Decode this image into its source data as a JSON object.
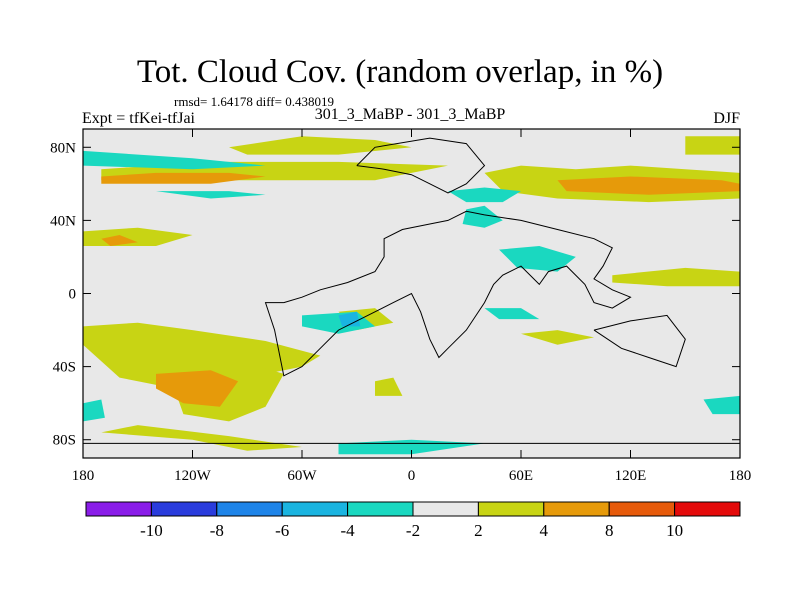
{
  "chart_data": {
    "type": "heatmap",
    "title": "Tot. Cloud Cov. (random overlap, in %)",
    "stats_text": "rmsd= 1.64178 diff= 0.438019",
    "left_label": "Expt = tfKei-tfJai",
    "center_label": "301_3_MaBP - 301_3_MaBP",
    "right_label": "DJF",
    "x_ticks": [
      "180",
      "120W",
      "60W",
      "0",
      "60E",
      "120E",
      "180"
    ],
    "x_tick_values": [
      -180,
      -120,
      -60,
      0,
      60,
      120,
      180
    ],
    "y_ticks": [
      "80N",
      "40N",
      "0",
      "40S",
      "80S"
    ],
    "y_tick_values": [
      80,
      40,
      0,
      -40,
      -80
    ],
    "xlim": [
      -180,
      180
    ],
    "ylim": [
      -90,
      90
    ],
    "colorbar": {
      "labels": [
        "-10",
        "-8",
        "-6",
        "-4",
        "-2",
        "2",
        "4",
        "8",
        "10"
      ],
      "colors": [
        "#8a1de8",
        "#2a3cdc",
        "#1e84e8",
        "#1ab4e0",
        "#1ad8c0",
        "#e8e8e8",
        "#c8d414",
        "#e69a0a",
        "#e65a0a",
        "#e40a0a"
      ]
    },
    "regions": [
      {
        "level": 2,
        "color": "#c8d414",
        "polygons": [
          [
            [
              -100,
              80
            ],
            [
              -60,
              86
            ],
            [
              -20,
              84
            ],
            [
              0,
              80
            ],
            [
              -40,
              76
            ],
            [
              -90,
              76
            ]
          ],
          [
            [
              -170,
              68
            ],
            [
              -110,
              72
            ],
            [
              -40,
              72
            ],
            [
              20,
              70
            ],
            [
              -20,
              62
            ],
            [
              -120,
              62
            ],
            [
              -170,
              62
            ]
          ],
          [
            [
              40,
              66
            ],
            [
              60,
              70
            ],
            [
              90,
              68
            ],
            [
              120,
              70
            ],
            [
              150,
              68
            ],
            [
              180,
              66
            ],
            [
              180,
              52
            ],
            [
              130,
              50
            ],
            [
              80,
              52
            ],
            [
              50,
              56
            ]
          ],
          [
            [
              150,
              86
            ],
            [
              180,
              86
            ],
            [
              180,
              76
            ],
            [
              150,
              76
            ]
          ],
          [
            [
              -180,
              34
            ],
            [
              -150,
              36
            ],
            [
              -120,
              32
            ],
            [
              -140,
              26
            ],
            [
              -180,
              26
            ]
          ],
          [
            [
              -180,
              -18
            ],
            [
              -150,
              -16
            ],
            [
              -120,
              -20
            ],
            [
              -80,
              -26
            ],
            [
              -50,
              -34
            ],
            [
              -60,
              -40
            ],
            [
              -100,
              -48
            ],
            [
              -130,
              -52
            ],
            [
              -160,
              -46
            ],
            [
              -180,
              -28
            ]
          ],
          [
            [
              -110,
              -40
            ],
            [
              -90,
              -38
            ],
            [
              -70,
              -44
            ],
            [
              -80,
              -62
            ],
            [
              -100,
              -70
            ],
            [
              -125,
              -66
            ],
            [
              -130,
              -52
            ]
          ],
          [
            [
              -170,
              -76
            ],
            [
              -120,
              -80
            ],
            [
              -90,
              -86
            ],
            [
              -60,
              -84
            ],
            [
              -100,
              -78
            ],
            [
              -150,
              -72
            ]
          ],
          [
            [
              -40,
              -10
            ],
            [
              -20,
              -8
            ],
            [
              -10,
              -16
            ],
            [
              -30,
              -20
            ]
          ],
          [
            [
              60,
              -22
            ],
            [
              80,
              -20
            ],
            [
              100,
              -24
            ],
            [
              80,
              -28
            ]
          ],
          [
            [
              110,
              10
            ],
            [
              150,
              14
            ],
            [
              180,
              12
            ],
            [
              180,
              4
            ],
            [
              140,
              4
            ],
            [
              110,
              6
            ]
          ],
          [
            [
              -20,
              -48
            ],
            [
              -10,
              -46
            ],
            [
              -5,
              -56
            ],
            [
              -20,
              -56
            ]
          ]
        ]
      },
      {
        "level": 4,
        "color": "#e69a0a",
        "polygons": [
          [
            [
              -170,
              64
            ],
            [
              -140,
              66
            ],
            [
              -100,
              66
            ],
            [
              -80,
              64
            ],
            [
              -110,
              60
            ],
            [
              -170,
              60
            ]
          ],
          [
            [
              80,
              62
            ],
            [
              120,
              64
            ],
            [
              170,
              62
            ],
            [
              180,
              60
            ],
            [
              180,
              56
            ],
            [
              130,
              54
            ],
            [
              85,
              56
            ]
          ],
          [
            [
              -170,
              30
            ],
            [
              -160,
              32
            ],
            [
              -150,
              28
            ],
            [
              -165,
              26
            ]
          ],
          [
            [
              -140,
              -44
            ],
            [
              -110,
              -42
            ],
            [
              -95,
              -48
            ],
            [
              -105,
              -62
            ],
            [
              -125,
              -60
            ],
            [
              -140,
              -52
            ]
          ]
        ]
      },
      {
        "level": -2,
        "color": "#1ad8c0",
        "polygons": [
          [
            [
              -180,
              78
            ],
            [
              -120,
              74
            ],
            [
              -80,
              70
            ],
            [
              -120,
              68
            ],
            [
              -180,
              70
            ]
          ],
          [
            [
              -140,
              56
            ],
            [
              -100,
              56
            ],
            [
              -80,
              54
            ],
            [
              -110,
              52
            ]
          ],
          [
            [
              20,
              56
            ],
            [
              40,
              58
            ],
            [
              60,
              56
            ],
            [
              50,
              50
            ],
            [
              30,
              50
            ]
          ],
          [
            [
              30,
              46
            ],
            [
              40,
              48
            ],
            [
              50,
              40
            ],
            [
              40,
              36
            ],
            [
              28,
              38
            ]
          ],
          [
            [
              48,
              24
            ],
            [
              70,
              26
            ],
            [
              90,
              20
            ],
            [
              80,
              12
            ],
            [
              58,
              14
            ]
          ],
          [
            [
              -60,
              -12
            ],
            [
              -30,
              -10
            ],
            [
              -20,
              -18
            ],
            [
              -40,
              -22
            ],
            [
              -60,
              -18
            ]
          ],
          [
            [
              40,
              -8
            ],
            [
              60,
              -8
            ],
            [
              70,
              -14
            ],
            [
              48,
              -14
            ]
          ],
          [
            [
              -180,
              -60
            ],
            [
              -170,
              -58
            ],
            [
              -168,
              -68
            ],
            [
              -180,
              -70
            ]
          ],
          [
            [
              -40,
              -82
            ],
            [
              0,
              -80
            ],
            [
              40,
              -82
            ],
            [
              0,
              -88
            ],
            [
              -40,
              -88
            ]
          ],
          [
            [
              160,
              -58
            ],
            [
              180,
              -56
            ],
            [
              180,
              -66
            ],
            [
              165,
              -66
            ]
          ]
        ]
      },
      {
        "level": -4,
        "color": "#1ab4e0",
        "polygons": [
          [
            [
              -40,
              -12
            ],
            [
              -30,
              -10
            ],
            [
              -28,
              -18
            ],
            [
              -38,
              -18
            ]
          ]
        ]
      }
    ],
    "coastline": [
      [
        [
          -70,
          -5
        ],
        [
          -60,
          -2
        ],
        [
          -50,
          2
        ],
        [
          -35,
          6
        ],
        [
          -20,
          12
        ],
        [
          -15,
          20
        ],
        [
          -15,
          30
        ],
        [
          -5,
          35
        ],
        [
          10,
          38
        ],
        [
          20,
          40
        ],
        [
          30,
          45
        ],
        [
          40,
          43
        ],
        [
          60,
          40
        ],
        [
          80,
          35
        ],
        [
          100,
          30
        ],
        [
          110,
          25
        ],
        [
          105,
          15
        ],
        [
          100,
          8
        ],
        [
          110,
          2
        ],
        [
          120,
          -2
        ],
        [
          110,
          -8
        ],
        [
          100,
          -5
        ],
        [
          95,
          5
        ],
        [
          85,
          15
        ],
        [
          75,
          12
        ],
        [
          70,
          5
        ],
        [
          60,
          15
        ],
        [
          50,
          10
        ],
        [
          45,
          5
        ],
        [
          40,
          -5
        ],
        [
          30,
          -20
        ],
        [
          20,
          -30
        ],
        [
          15,
          -35
        ],
        [
          10,
          -25
        ],
        [
          5,
          -10
        ],
        [
          0,
          0
        ],
        [
          -10,
          -5
        ],
        [
          -20,
          -10
        ],
        [
          -30,
          -15
        ],
        [
          -40,
          -20
        ],
        [
          -50,
          -30
        ],
        [
          -60,
          -40
        ],
        [
          -70,
          -45
        ],
        [
          -75,
          -20
        ],
        [
          -80,
          -5
        ],
        [
          -70,
          -5
        ]
      ],
      [
        [
          -30,
          70
        ],
        [
          -20,
          80
        ],
        [
          10,
          85
        ],
        [
          30,
          82
        ],
        [
          40,
          70
        ],
        [
          30,
          60
        ],
        [
          20,
          55
        ],
        [
          10,
          60
        ],
        [
          0,
          65
        ],
        [
          -15,
          68
        ],
        [
          -30,
          70
        ]
      ],
      [
        [
          100,
          -20
        ],
        [
          120,
          -15
        ],
        [
          140,
          -12
        ],
        [
          150,
          -25
        ],
        [
          145,
          -40
        ],
        [
          130,
          -35
        ],
        [
          115,
          -30
        ],
        [
          100,
          -20
        ]
      ],
      [
        [
          -180,
          -82
        ],
        [
          180,
          -82
        ]
      ]
    ]
  }
}
